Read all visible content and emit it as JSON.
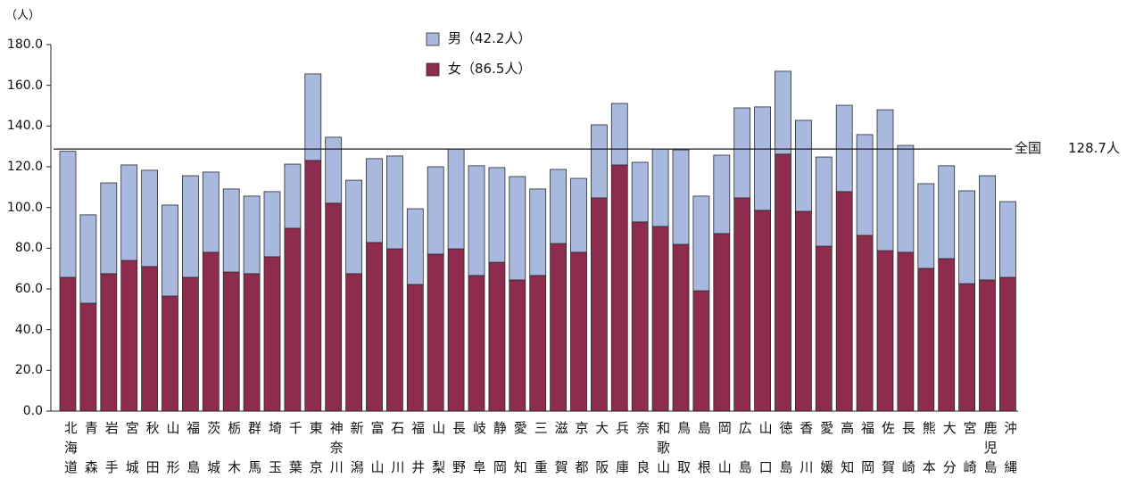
{
  "chart_data": {
    "type": "bar",
    "stacked": true,
    "y_unit_label": "（人）",
    "ylim": [
      0,
      180
    ],
    "yticks": [
      0,
      20,
      40,
      60,
      80,
      100,
      120,
      140,
      160,
      180
    ],
    "ytick_labels": [
      "0.0",
      "20.0",
      "40.0",
      "60.0",
      "80.0",
      "100.0",
      "120.0",
      "140.0",
      "160.0",
      "180.0"
    ],
    "grid": false,
    "legend_position": "top-center",
    "categories": [
      "北海道",
      "青森",
      "岩手",
      "宮城",
      "秋田",
      "山形",
      "福島",
      "茨城",
      "栃木",
      "群馬",
      "埼玉",
      "千葉",
      "東京",
      "神奈川",
      "新潟",
      "富山",
      "石川",
      "福井",
      "山梨",
      "長野",
      "岐阜",
      "静岡",
      "愛知",
      "三重",
      "滋賀",
      "京都",
      "大阪",
      "兵庫",
      "奈良",
      "和歌山",
      "鳥取",
      "島根",
      "岡山",
      "広島",
      "山口",
      "徳島",
      "香川",
      "愛媛",
      "高知",
      "福岡",
      "佐賀",
      "長崎",
      "熊本",
      "大分",
      "宮崎",
      "鹿児島",
      "沖縄"
    ],
    "series": [
      {
        "name": "女（86.5人）",
        "color": "#8e2c50",
        "values": [
          65.7,
          53.0,
          67.5,
          74.0,
          71.0,
          56.5,
          65.7,
          78.0,
          68.3,
          67.5,
          75.8,
          89.8,
          123.1,
          102.1,
          67.5,
          82.8,
          79.7,
          62.2,
          77.1,
          79.7,
          66.6,
          73.1,
          64.4,
          66.6,
          82.3,
          78.0,
          104.7,
          120.9,
          92.9,
          90.7,
          81.9,
          59.1,
          87.2,
          104.7,
          98.6,
          126.2,
          98.1,
          81.0,
          107.8,
          86.3,
          78.8,
          78.0,
          70.1,
          74.9,
          62.6,
          64.4,
          65.7
        ]
      },
      {
        "name": "男（42.2人）",
        "color": "#a8b8df",
        "values": [
          61.9,
          43.4,
          44.6,
          46.9,
          47.3,
          44.7,
          49.9,
          39.4,
          40.8,
          38.1,
          32.0,
          31.5,
          42.5,
          32.4,
          45.9,
          41.2,
          45.6,
          37.2,
          42.9,
          49.1,
          53.9,
          46.5,
          50.8,
          42.5,
          36.4,
          36.3,
          35.9,
          30.2,
          29.3,
          38.1,
          46.4,
          46.5,
          38.5,
          44.2,
          50.8,
          40.7,
          44.7,
          43.8,
          42.4,
          49.5,
          69.2,
          52.5,
          41.6,
          45.6,
          45.6,
          51.2,
          37.2
        ]
      }
    ],
    "reference_line": {
      "value": 128.7,
      "label": "全国",
      "value_label": "128.7人"
    }
  }
}
